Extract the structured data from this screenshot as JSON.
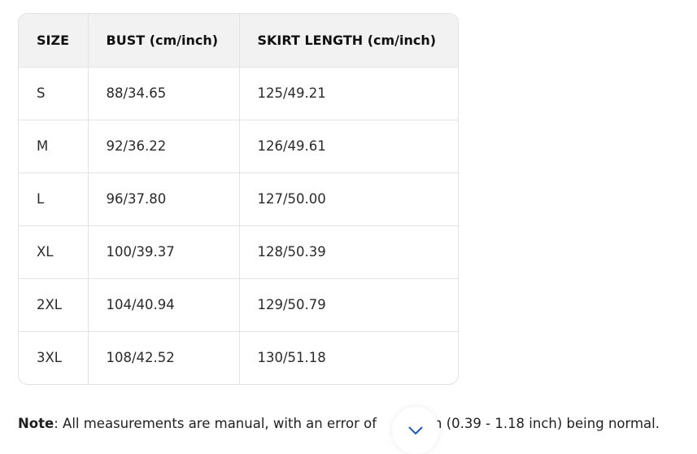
{
  "table": {
    "headers": [
      "SIZE",
      "BUST (cm/inch)",
      "SKIRT LENGTH (cm/inch)"
    ],
    "rows": [
      [
        "S",
        "88/34.65",
        "125/49.21"
      ],
      [
        "M",
        "92/36.22",
        "126/49.61"
      ],
      [
        "L",
        "96/37.80",
        "127/50.00"
      ],
      [
        "XL",
        "100/39.37",
        "128/50.39"
      ],
      [
        "2XL",
        "104/40.94",
        "129/50.79"
      ],
      [
        "3XL",
        "108/42.52",
        "130/51.18"
      ]
    ]
  },
  "note": {
    "label": "Note",
    "text_before": ": All measurements are manual, with an error of ",
    "text_after": "cm (0.39 - 1.18 inch) being normal."
  },
  "scroll_button": {
    "icon": "chevron-down-icon",
    "color": "#1a56c4"
  }
}
